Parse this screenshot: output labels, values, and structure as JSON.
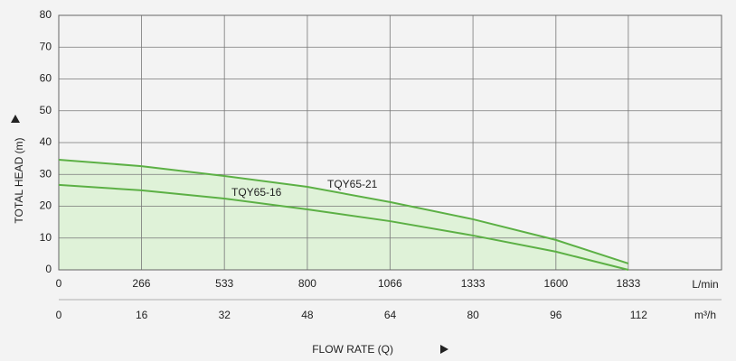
{
  "chart_data": {
    "type": "line",
    "ylabel": "TOTAL HEAD (m)",
    "xlabel": "FLOW RATE (Q)",
    "xunit": "L/min",
    "x2unit": "m³/h",
    "x": [
      0,
      266,
      533,
      800,
      1066,
      1333,
      1600,
      1833
    ],
    "series": [
      {
        "name": "TQY65-21",
        "color": "#5cb045",
        "values": [
          34.6,
          32.6,
          29.5,
          26.1,
          21.3,
          15.9,
          9.4,
          2.0
        ]
      },
      {
        "name": "TQY65-16",
        "color": "#5cb045",
        "values": [
          26.7,
          25.0,
          22.4,
          19.0,
          15.3,
          10.8,
          5.7,
          0
        ]
      }
    ],
    "fill_color": "#dff2d8",
    "xlim": [
      0,
      2133
    ],
    "xticks": [
      0,
      266,
      533,
      800,
      1066,
      1333,
      1600,
      1833
    ],
    "x2lim": [
      0,
      128
    ],
    "x2ticks": [
      0,
      16,
      32,
      48,
      64,
      80,
      96,
      112
    ],
    "ylim": [
      0,
      80
    ],
    "yticks": [
      0,
      10,
      20,
      30,
      40,
      50,
      60,
      70,
      80
    ],
    "grid": true
  }
}
